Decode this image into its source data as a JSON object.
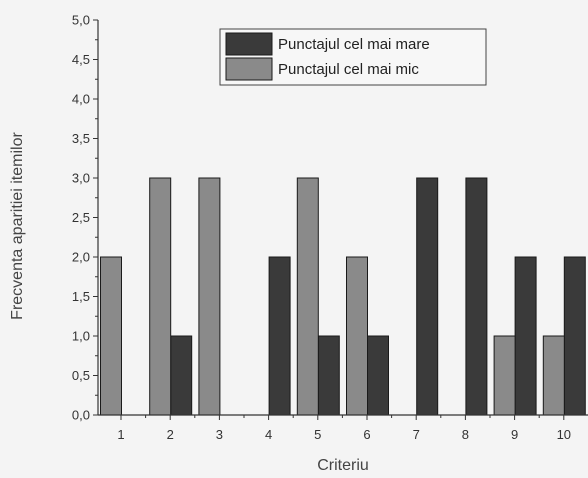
{
  "chart_data": {
    "type": "bar",
    "categories": [
      "1",
      "2",
      "3",
      "4",
      "5",
      "6",
      "7",
      "8",
      "9",
      "10"
    ],
    "series": [
      {
        "name": "Punctajul cel mai mare",
        "color": "#3a3a3a",
        "values": [
          0,
          1,
          0,
          2,
          1,
          1,
          3,
          3,
          2,
          2
        ]
      },
      {
        "name": "Punctajul cel mai mic",
        "color": "#8a8a8a",
        "values": [
          2,
          3,
          3,
          0,
          3,
          2,
          0,
          0,
          1,
          1
        ]
      }
    ],
    "yticks": [
      "0,0",
      "0,5",
      "1,0",
      "1,5",
      "2,0",
      "2,5",
      "3,0",
      "3,5",
      "4,0",
      "4,5",
      "5,0"
    ],
    "ylim": [
      0,
      5
    ],
    "xlabel": "Criteriu",
    "ylabel": "Frecventa aparitiei itemilor",
    "legend_position": "top-center",
    "grid": false
  }
}
